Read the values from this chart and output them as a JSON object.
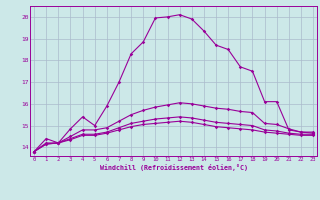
{
  "xlabel": "Windchill (Refroidissement éolien,°C)",
  "background_color": "#cce8e8",
  "grid_color": "#aabbcc",
  "line_color": "#990099",
  "x_ticks": [
    0,
    1,
    2,
    3,
    4,
    5,
    6,
    7,
    8,
    9,
    10,
    11,
    12,
    13,
    14,
    15,
    16,
    17,
    18,
    19,
    20,
    21,
    22,
    23
  ],
  "y_ticks": [
    14,
    15,
    16,
    17,
    18,
    19,
    20
  ],
  "ylim": [
    13.6,
    20.5
  ],
  "xlim": [
    -0.3,
    23.3
  ],
  "series": [
    [
      13.8,
      14.4,
      14.2,
      14.85,
      15.4,
      15.0,
      15.9,
      17.0,
      18.3,
      18.85,
      19.95,
      20.0,
      20.1,
      19.9,
      19.35,
      18.7,
      18.5,
      17.7,
      17.5,
      16.1,
      16.1,
      14.8,
      14.7,
      14.7
    ],
    [
      13.8,
      14.2,
      14.2,
      14.5,
      14.8,
      14.8,
      14.9,
      15.2,
      15.5,
      15.7,
      15.85,
      15.95,
      16.05,
      16.0,
      15.9,
      15.8,
      15.75,
      15.65,
      15.6,
      15.1,
      15.05,
      14.85,
      14.7,
      14.65
    ],
    [
      13.8,
      14.15,
      14.2,
      14.4,
      14.6,
      14.6,
      14.7,
      14.9,
      15.1,
      15.2,
      15.3,
      15.35,
      15.4,
      15.35,
      15.25,
      15.15,
      15.1,
      15.05,
      15.0,
      14.8,
      14.75,
      14.65,
      14.6,
      14.6
    ],
    [
      13.8,
      14.15,
      14.2,
      14.35,
      14.55,
      14.55,
      14.65,
      14.8,
      14.95,
      15.05,
      15.1,
      15.15,
      15.2,
      15.15,
      15.05,
      14.95,
      14.9,
      14.85,
      14.8,
      14.7,
      14.65,
      14.6,
      14.55,
      14.55
    ]
  ]
}
